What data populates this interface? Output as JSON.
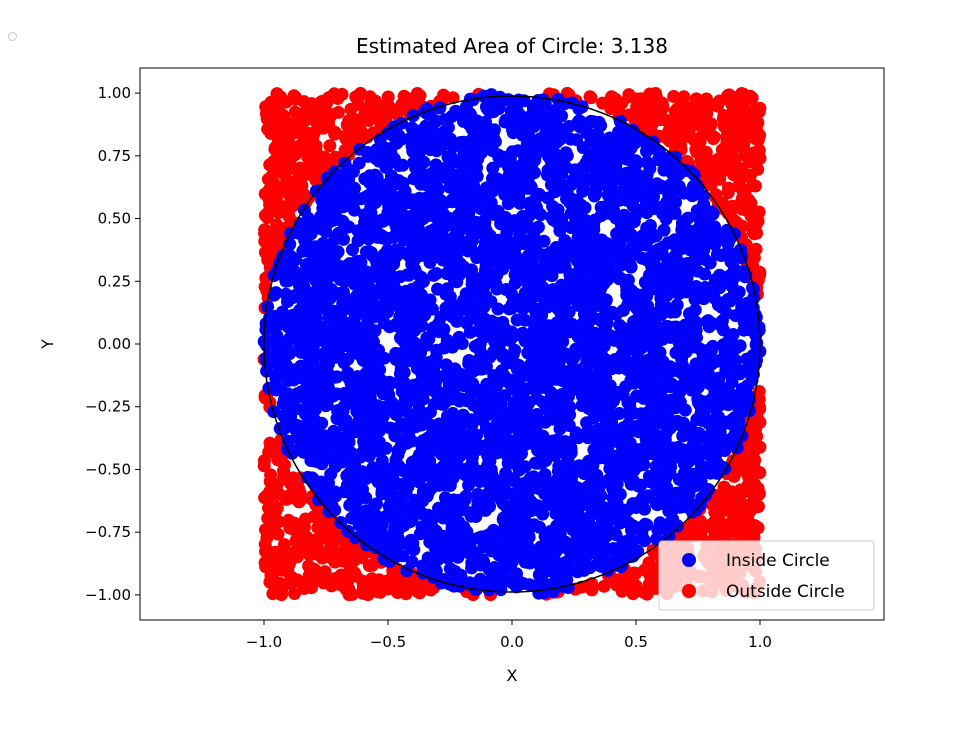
{
  "chart_data": {
    "type": "scatter",
    "title": "Estimated Area of Circle: 3.138",
    "xlabel": "X",
    "ylabel": "Y",
    "xlim": [
      -1.5,
      1.5
    ],
    "ylim": [
      -1.1,
      1.1
    ],
    "xticks": [
      "−1.0",
      "−0.5",
      "0.0",
      "0.5",
      "1.0"
    ],
    "xtick_values": [
      -1.0,
      -0.5,
      0.0,
      0.5,
      1.0
    ],
    "yticks": [
      "1.00",
      "0.75",
      "0.50",
      "0.25",
      "0.00",
      "−0.25",
      "−0.50",
      "−0.75",
      "−1.00"
    ],
    "ytick_values": [
      1.0,
      0.75,
      0.5,
      0.25,
      0.0,
      -0.25,
      -0.5,
      -0.75,
      -1.0
    ],
    "sampling_region": {
      "x": [
        -1,
        1
      ],
      "y": [
        -1,
        1
      ]
    },
    "reference_circle": {
      "cx": 0,
      "cy": 0,
      "r": 1,
      "color": "#000000"
    },
    "series": [
      {
        "name": "Inside Circle",
        "color": "#0000ff",
        "rule": "x^2 + y^2 <= 1"
      },
      {
        "name": "Outside Circle",
        "color": "#ff0000",
        "rule": "x^2 + y^2 > 1"
      }
    ],
    "legend": {
      "position": "lower right"
    },
    "grid": false
  }
}
